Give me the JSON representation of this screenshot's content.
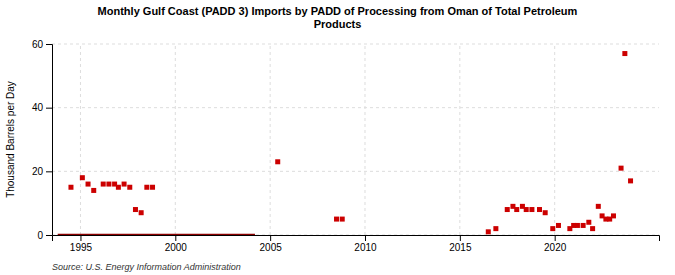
{
  "chart_data": {
    "type": "scatter",
    "title": "Monthly Gulf Coast (PADD 3) Imports by PADD of Processing from Oman of Total Petroleum\nProducts",
    "ylabel": "Thousand Barrels per Day",
    "source": "Source: U.S. Energy Information Administration",
    "xlim": [
      1993.5,
      2025.5
    ],
    "ylim": [
      0,
      60
    ],
    "xticks": [
      1995,
      2000,
      2005,
      2010,
      2015,
      2020
    ],
    "yticks": [
      0,
      20,
      40,
      60
    ],
    "grid": true,
    "series": [
      {
        "type": "scatter",
        "marker": "square",
        "color": "#cc0000",
        "x": [
          1994.5,
          1995.1,
          1995.4,
          1995.7,
          1996.2,
          1996.5,
          1996.8,
          1997.0,
          1997.3,
          1997.6,
          1997.9,
          1998.2,
          1998.5,
          1998.8,
          2005.4,
          2008.5,
          2008.8,
          2016.5,
          2016.9,
          2017.5,
          2017.8,
          2018.0,
          2018.3,
          2018.5,
          2018.8,
          2019.2,
          2019.5,
          2019.9,
          2020.2,
          2020.8,
          2021.0,
          2021.2,
          2021.5,
          2021.8,
          2022.0,
          2022.3,
          2022.5,
          2022.7,
          2022.9,
          2023.1,
          2023.5,
          2023.7,
          2024.0
        ],
        "values": [
          15,
          18,
          16,
          14,
          16,
          16,
          16,
          15,
          16,
          15,
          8,
          7,
          15,
          15,
          23,
          5,
          5,
          1,
          2,
          8,
          9,
          8,
          9,
          8,
          8,
          8,
          7,
          2,
          3,
          2,
          3,
          3,
          3,
          4,
          2,
          9,
          6,
          5,
          5,
          6,
          21,
          57,
          17
        ]
      },
      {
        "type": "line",
        "color": "#8b0000",
        "x": [
          1993.8,
          2004.2
        ],
        "values": [
          0,
          0
        ]
      }
    ]
  }
}
